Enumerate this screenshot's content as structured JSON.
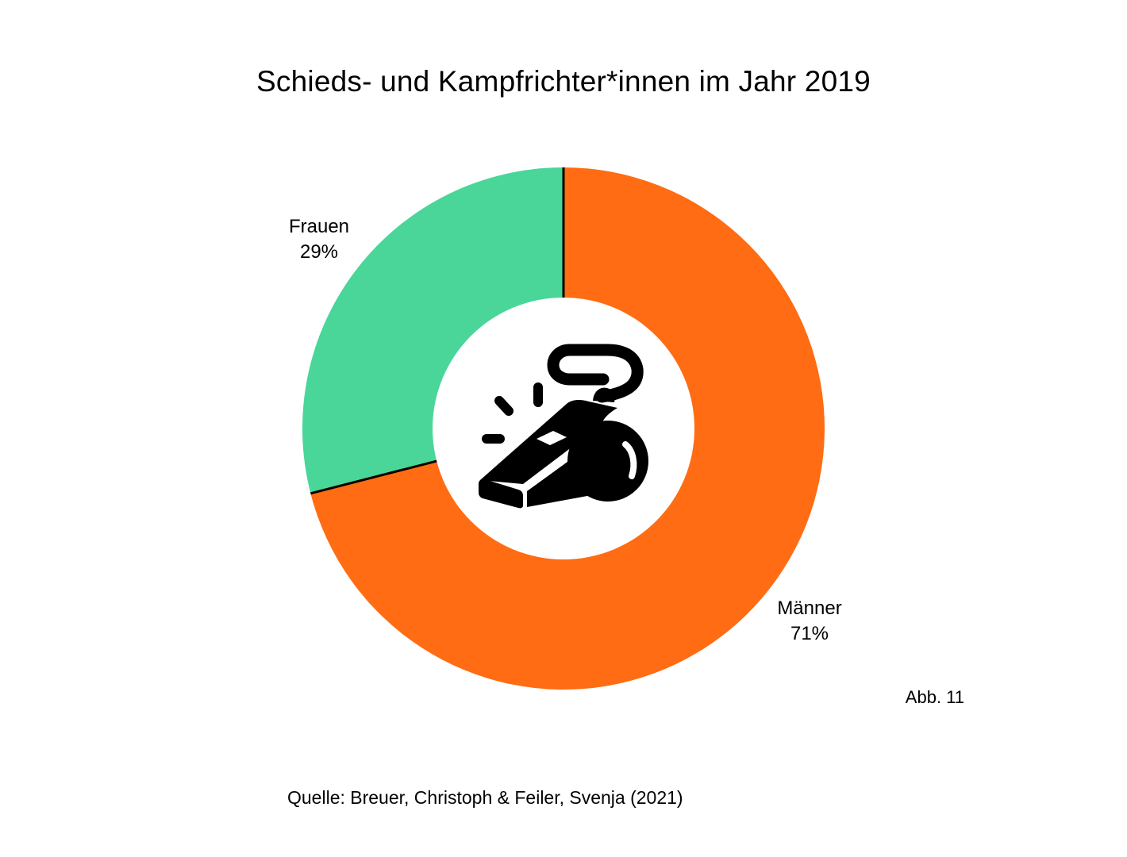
{
  "chart_data": {
    "type": "pie",
    "donut": true,
    "title": "Schieds- und Kampfrichter*innen im Jahr 2019",
    "slices": [
      {
        "label": "Männer",
        "value": 71,
        "value_label": "71%",
        "color": "#ff6c13"
      },
      {
        "label": "Frauen",
        "value": 29,
        "value_label": "29%",
        "color": "#4ad699"
      }
    ],
    "center_icon": "whistle-icon",
    "legend": "none"
  },
  "figure_number": "Abb. 11",
  "source": "Quelle: Breuer, Christoph & Feiler, Svenja (2021)"
}
